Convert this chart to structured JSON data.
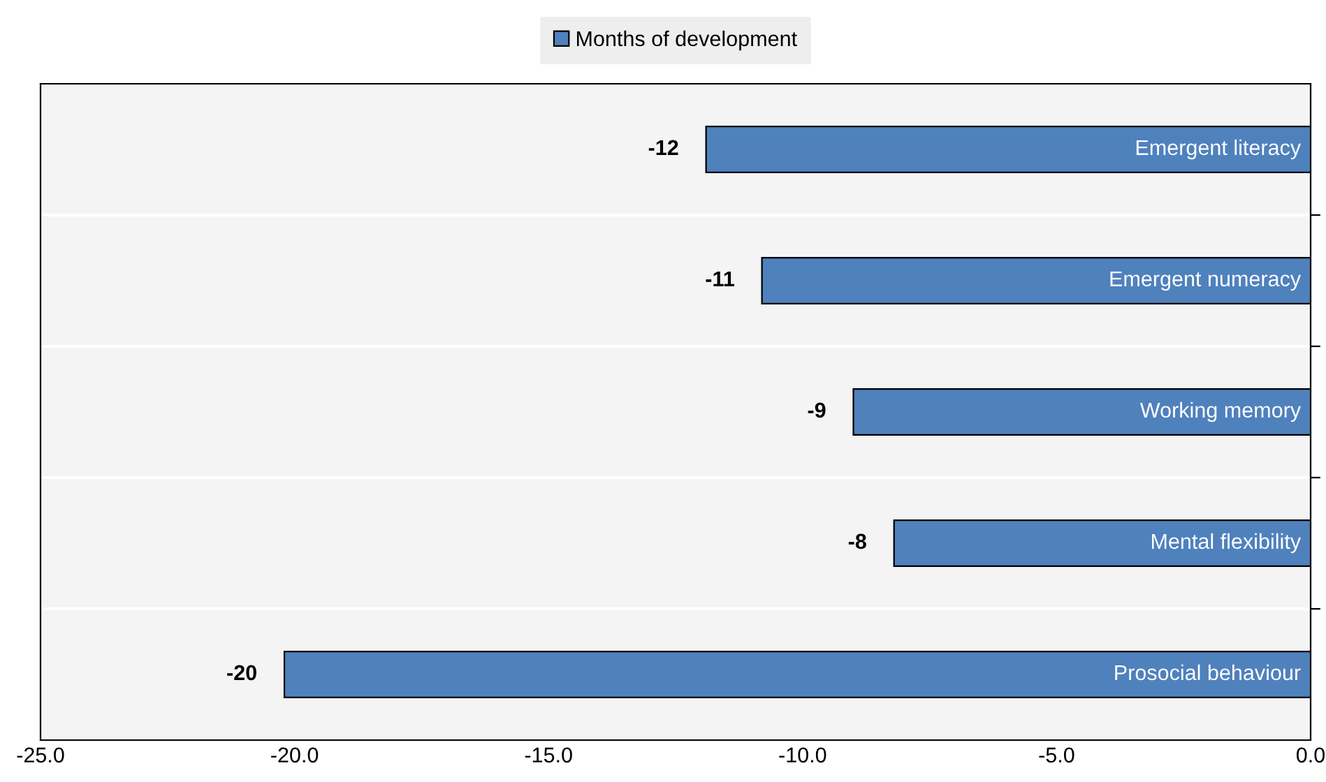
{
  "chart_data": {
    "type": "bar",
    "orientation": "horizontal",
    "categories": [
      "Emergent literacy",
      "Emergent numeracy",
      "Working memory",
      "Mental flexibility",
      "Prosocial behaviour"
    ],
    "series": [
      {
        "name": "Months of development",
        "color": "#4f81bd",
        "values": [
          -11.9,
          -10.8,
          -9.0,
          -8.2,
          -20.2
        ],
        "value_labels": [
          "-12",
          "-11",
          "-9",
          "-8",
          "-20"
        ]
      }
    ],
    "xlim": [
      -25,
      0
    ],
    "xticks": [
      {
        "value": -25,
        "label": "-25.0"
      },
      {
        "value": -20,
        "label": "-20.0"
      },
      {
        "value": -15,
        "label": "-15.0"
      },
      {
        "value": -10,
        "label": "-10.0"
      },
      {
        "value": -5,
        "label": "-5.0"
      },
      {
        "value": 0,
        "label": "0.0"
      }
    ],
    "grid": "y",
    "legend": "top"
  }
}
